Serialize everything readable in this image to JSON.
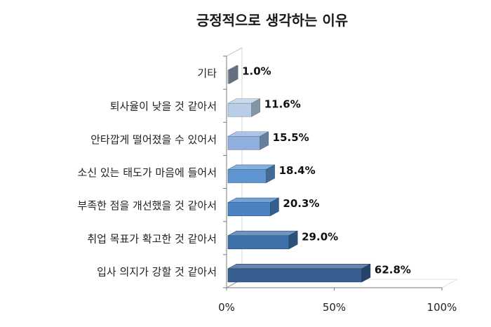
{
  "chart_data": {
    "type": "bar",
    "orientation": "horizontal",
    "title": "긍정적으로 생각하는 이유",
    "categories": [
      "기타",
      "퇴사율이 낮을 것 같아서",
      "안타깝게 떨어졌을 수 있어서",
      "소신 있는 태도가 마음에 들어서",
      "부족한 점을 개선했을 것 같아서",
      "취업 목표가 확고한 것 같아서",
      "입사 의지가 강할 것 같아서"
    ],
    "values": [
      1.0,
      11.6,
      15.5,
      18.4,
      20.3,
      29.0,
      62.8
    ],
    "value_labels": [
      "1.0%",
      "11.6%",
      "15.5%",
      "18.4%",
      "20.3%",
      "29.0%",
      "62.8%"
    ],
    "xlim": [
      0,
      100
    ],
    "x_ticks": [
      0,
      50,
      100
    ],
    "x_tick_labels": [
      "0%",
      "50%",
      "100%"
    ],
    "colors": [
      "#8c9bb2",
      "#b9cde6",
      "#8fb0dc",
      "#5e95d0",
      "#4a82c2",
      "#3e70aa",
      "#365e90"
    ],
    "grid": false,
    "legend": "none",
    "style": "3d"
  }
}
